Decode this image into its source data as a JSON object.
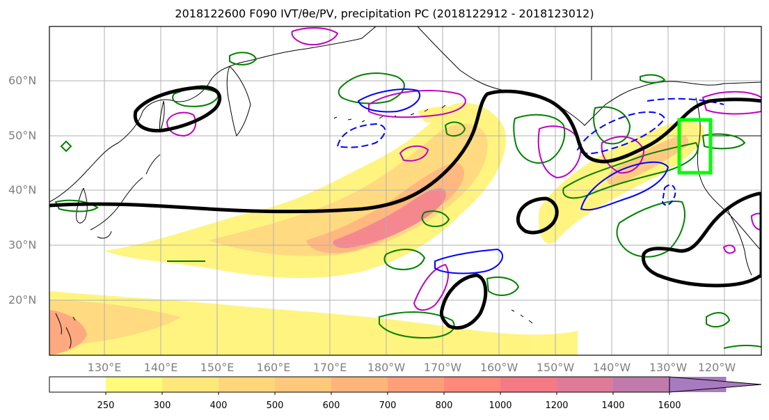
{
  "title": "2018122600 F090 IVT/θe/PV, precipitation PC (2018122912 - 2018123012)",
  "lat_labels": [
    "60°N",
    "50°N",
    "40°N",
    "30°N",
    "20°N"
  ],
  "lon_labels": [
    "130°E",
    "140°E",
    "150°E",
    "160°E",
    "170°E",
    "180°W",
    "170°W",
    "160°W",
    "150°W",
    "140°W",
    "130°W",
    "120°W"
  ],
  "colorbar": {
    "ticks": [
      "250",
      "300",
      "400",
      "500",
      "600",
      "700",
      "800",
      "1000",
      "1200",
      "1400",
      "1600"
    ],
    "colors": [
      "#ffffff",
      "#fffb7a",
      "#ffe87a",
      "#ffd77a",
      "#ffc87a",
      "#ffb57a",
      "#ff9f7a",
      "#ff887a",
      "#f57a85",
      "#e07a9a",
      "#c07aac",
      "#a87ac0"
    ]
  },
  "colors": {
    "theta_e": "#000000",
    "pv_magenta": "#c000c0",
    "pv_green": "#008000",
    "ivt_blue": "#0000ff",
    "box": "#00ff00",
    "grid": "#b0b0b0"
  }
}
